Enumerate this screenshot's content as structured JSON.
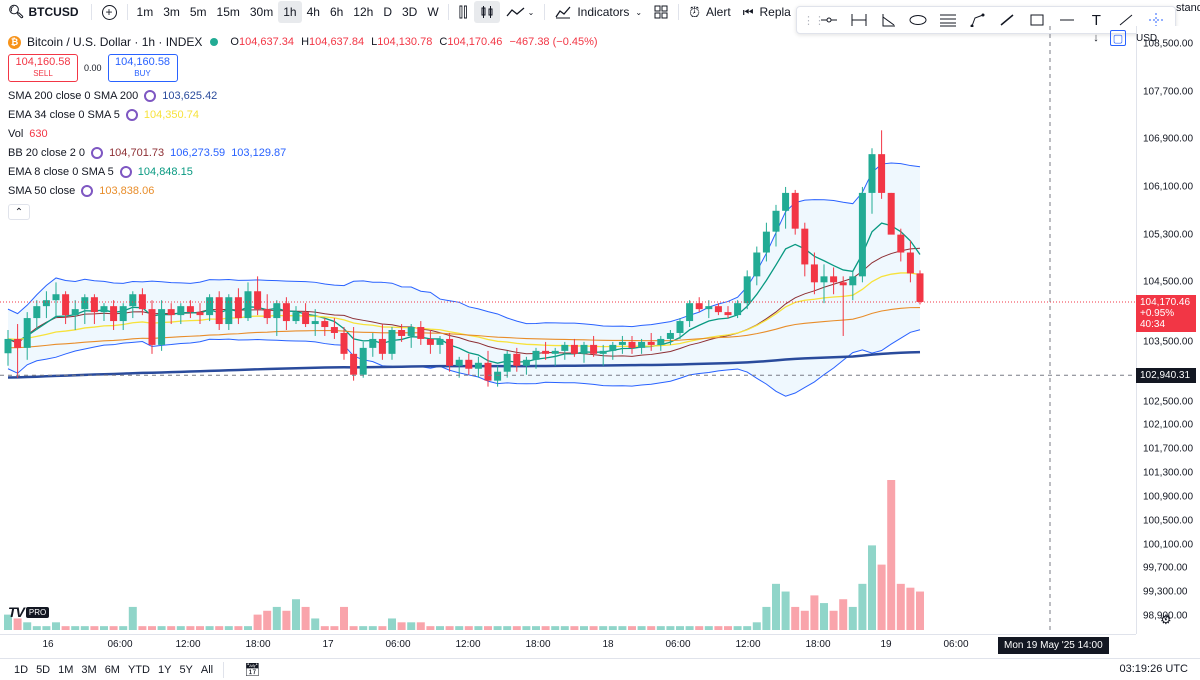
{
  "toolbar": {
    "symbol": "BTCUSD",
    "intervals": [
      "1m",
      "3m",
      "5m",
      "15m",
      "30m",
      "1h",
      "4h",
      "6h",
      "12h",
      "D",
      "3D",
      "W"
    ],
    "active_interval": "1h",
    "indicators_label": "Indicators",
    "alert_label": "Alert",
    "replay_label": "Repla",
    "standard_label": "stand"
  },
  "legend": {
    "title": "Bitcoin / U.S. Dollar · 1h · INDEX",
    "ohlc": {
      "o_label": "O",
      "o": "104,637.34",
      "h_label": "H",
      "h": "104,637.84",
      "l_label": "L",
      "l": "104,130.78",
      "c_label": "C",
      "c": "104,170.46",
      "chg": "−467.38 (−0.45%)"
    },
    "sell_price": "104,160.58",
    "sell_label": "SELL",
    "spread": "0.00",
    "buy_price": "104,160.58",
    "buy_label": "BUY",
    "indicators": [
      {
        "label": "SMA 200 close 0 SMA 200",
        "values": [
          "103,625.42"
        ],
        "colors": [
          "#2a4b9c"
        ]
      },
      {
        "label": "EMA 34 close 0 SMA 5",
        "values": [
          "104,350.74"
        ],
        "colors": [
          "#f7e23b"
        ]
      },
      {
        "label": "Vol",
        "values": [
          "630"
        ],
        "colors": [
          "#f23645"
        ]
      },
      {
        "label": "BB 20 close 2 0",
        "values": [
          "104,701.73",
          "106,273.59",
          "103,129.87"
        ],
        "colors": [
          "#8d2f34",
          "#2962ff",
          "#2962ff"
        ]
      },
      {
        "label": "EMA 8 close 0 SMA 5",
        "values": [
          "104,848.15"
        ],
        "colors": [
          "#089981"
        ]
      },
      {
        "label": "SMA 50 close",
        "values": [
          "103,838.06"
        ],
        "colors": [
          "#e88d2a"
        ]
      }
    ]
  },
  "price_axis": {
    "currency": "USD",
    "ticks": [
      "108,500.00",
      "107,700.00",
      "106,900.00",
      "106,100.00",
      "105,300.00",
      "104,500.00",
      "103,500.00",
      "102,500.00",
      "102,100.00",
      "101,700.00",
      "101,300.00",
      "100,900.00",
      "100,500.00",
      "100,100.00",
      "99,700.00",
      "99,300.00",
      "98,900.00"
    ],
    "current_price": "104,170.46",
    "current_change": "+0.95%",
    "countdown": "40:34",
    "crosshair_price": "102,940.31"
  },
  "time_axis": {
    "ticks": [
      "16",
      "06:00",
      "12:00",
      "18:00",
      "17",
      "06:00",
      "12:00",
      "18:00",
      "18",
      "06:00",
      "12:00",
      "18:00",
      "19",
      "06:00"
    ],
    "crosshair_time": "Mon 19 May '25   14:00"
  },
  "logo": {
    "tv": "TV",
    "pro": "PRO"
  },
  "bottom": {
    "ranges": [
      "1D",
      "5D",
      "1M",
      "3M",
      "6M",
      "YTD",
      "1Y",
      "5Y",
      "All"
    ],
    "clock": "03:19:26 UTC"
  },
  "colors": {
    "up": "#22ab94",
    "down": "#f23645",
    "accent": "#2962ff"
  },
  "chart_data": {
    "type": "candlestick",
    "title": "Bitcoin / U.S. Dollar · 1h · INDEX",
    "ylim": [
      98600,
      108800
    ],
    "candles": [
      [
        103310,
        103700,
        103100,
        103550
      ],
      [
        103550,
        103800,
        102900,
        103400
      ],
      [
        103400,
        104000,
        103200,
        103900
      ],
      [
        103900,
        104200,
        103700,
        104100
      ],
      [
        104100,
        104350,
        103900,
        104200
      ],
      [
        104200,
        104500,
        103900,
        104300
      ],
      [
        104300,
        104350,
        103800,
        103950
      ],
      [
        103950,
        104200,
        103700,
        104050
      ],
      [
        104050,
        104300,
        103800,
        104250
      ],
      [
        104250,
        104300,
        103800,
        104000
      ],
      [
        104000,
        104150,
        103850,
        104100
      ],
      [
        104100,
        104200,
        103700,
        103850
      ],
      [
        103850,
        104150,
        103700,
        104100
      ],
      [
        104100,
        104350,
        103900,
        104300
      ],
      [
        104300,
        104400,
        103950,
        104050
      ],
      [
        104050,
        104200,
        103300,
        103450
      ],
      [
        103450,
        104200,
        103350,
        104050
      ],
      [
        104050,
        104150,
        103800,
        103950
      ],
      [
        103950,
        104150,
        103800,
        104100
      ],
      [
        104100,
        104200,
        103900,
        104000
      ],
      [
        104000,
        104150,
        103800,
        103950
      ],
      [
        103950,
        104300,
        103850,
        104250
      ],
      [
        104250,
        104350,
        103700,
        103800
      ],
      [
        103800,
        104300,
        103700,
        104250
      ],
      [
        104250,
        104400,
        103800,
        103900
      ],
      [
        103900,
        104500,
        103850,
        104350
      ],
      [
        104350,
        104600,
        103950,
        104050
      ],
      [
        104050,
        104300,
        103800,
        103900
      ],
      [
        103900,
        104200,
        103600,
        104150
      ],
      [
        104150,
        104250,
        103700,
        103850
      ],
      [
        103850,
        104100,
        103800,
        104000
      ],
      [
        104000,
        104150,
        103750,
        103800
      ],
      [
        103800,
        104050,
        103600,
        103850
      ],
      [
        103850,
        103900,
        103600,
        103750
      ],
      [
        103750,
        103900,
        103550,
        103650
      ],
      [
        103650,
        103750,
        103200,
        103300
      ],
      [
        103300,
        103750,
        102850,
        102950
      ],
      [
        102950,
        103500,
        102900,
        103400
      ],
      [
        103400,
        103650,
        103250,
        103550
      ],
      [
        103550,
        103800,
        103200,
        103300
      ],
      [
        103300,
        103750,
        103200,
        103700
      ],
      [
        103700,
        103800,
        103500,
        103600
      ],
      [
        103600,
        103800,
        103400,
        103750
      ],
      [
        103750,
        103850,
        103450,
        103550
      ],
      [
        103550,
        103700,
        103300,
        103450
      ],
      [
        103450,
        103600,
        103300,
        103550
      ],
      [
        103550,
        103650,
        103000,
        103100
      ],
      [
        103100,
        103250,
        102900,
        103200
      ],
      [
        103200,
        103300,
        102950,
        103050
      ],
      [
        103050,
        103250,
        102900,
        103150
      ],
      [
        103150,
        103350,
        102750,
        102850
      ],
      [
        102850,
        103100,
        102750,
        103000
      ],
      [
        103000,
        103350,
        102900,
        103300
      ],
      [
        103300,
        103400,
        103000,
        103100
      ],
      [
        103100,
        103250,
        102950,
        103200
      ],
      [
        103200,
        103400,
        103050,
        103350
      ],
      [
        103350,
        103500,
        103200,
        103300
      ],
      [
        103300,
        103400,
        103100,
        103350
      ],
      [
        103350,
        103500,
        103200,
        103450
      ],
      [
        103450,
        103550,
        103250,
        103300
      ],
      [
        103300,
        103500,
        103150,
        103450
      ],
      [
        103450,
        103600,
        103250,
        103300
      ],
      [
        103300,
        103450,
        103100,
        103350
      ],
      [
        103350,
        103500,
        103200,
        103450
      ],
      [
        103450,
        103600,
        103300,
        103500
      ],
      [
        103500,
        103600,
        103300,
        103400
      ],
      [
        103400,
        103550,
        103300,
        103500
      ],
      [
        103500,
        103650,
        103350,
        103450
      ],
      [
        103450,
        103600,
        103350,
        103550
      ],
      [
        103550,
        103700,
        103450,
        103650
      ],
      [
        103650,
        103900,
        103550,
        103850
      ],
      [
        103850,
        104200,
        103750,
        104150
      ],
      [
        104150,
        104250,
        104000,
        104050
      ],
      [
        104050,
        104200,
        103900,
        104100
      ],
      [
        104100,
        104150,
        103950,
        104000
      ],
      [
        104000,
        104100,
        103900,
        103950
      ],
      [
        103950,
        104200,
        103900,
        104150
      ],
      [
        104150,
        104700,
        104050,
        104600
      ],
      [
        104600,
        105100,
        104450,
        105000
      ],
      [
        105000,
        105500,
        104850,
        105350
      ],
      [
        105350,
        105800,
        105100,
        105700
      ],
      [
        105700,
        106100,
        105400,
        106000
      ],
      [
        106000,
        106050,
        105300,
        105400
      ],
      [
        105400,
        105500,
        104600,
        104800
      ],
      [
        104800,
        105000,
        104300,
        104500
      ],
      [
        104500,
        104800,
        104150,
        104600
      ],
      [
        104600,
        104750,
        104300,
        104500
      ],
      [
        104500,
        104600,
        103600,
        104450
      ],
      [
        104450,
        104700,
        104200,
        104600
      ],
      [
        104600,
        106100,
        104500,
        106000
      ],
      [
        106000,
        106750,
        105650,
        106650
      ],
      [
        106650,
        107050,
        105900,
        106000
      ],
      [
        106000,
        106000,
        105400,
        105300
      ],
      [
        105300,
        105400,
        104850,
        105000
      ],
      [
        105000,
        105200,
        104500,
        104650
      ],
      [
        104650,
        104700,
        104130,
        104170
      ]
    ],
    "volume": [
      4,
      3,
      2,
      1,
      1,
      2,
      1,
      1,
      1,
      1,
      1,
      1,
      1,
      6,
      1,
      1,
      1,
      1,
      1,
      1,
      1,
      1,
      1,
      1,
      1,
      1,
      4,
      5,
      6,
      5,
      8,
      6,
      3,
      1,
      1,
      6,
      1,
      1,
      1,
      1,
      3,
      2,
      2,
      2,
      1,
      1,
      1,
      1,
      1,
      1,
      1,
      1,
      1,
      1,
      1,
      1,
      1,
      1,
      1,
      1,
      1,
      1,
      1,
      1,
      1,
      1,
      1,
      1,
      1,
      1,
      1,
      1,
      1,
      1,
      1,
      1,
      1,
      1,
      2,
      6,
      12,
      10,
      6,
      5,
      9,
      7,
      5,
      8,
      6,
      12,
      22,
      17,
      39,
      12,
      11,
      10
    ]
  }
}
